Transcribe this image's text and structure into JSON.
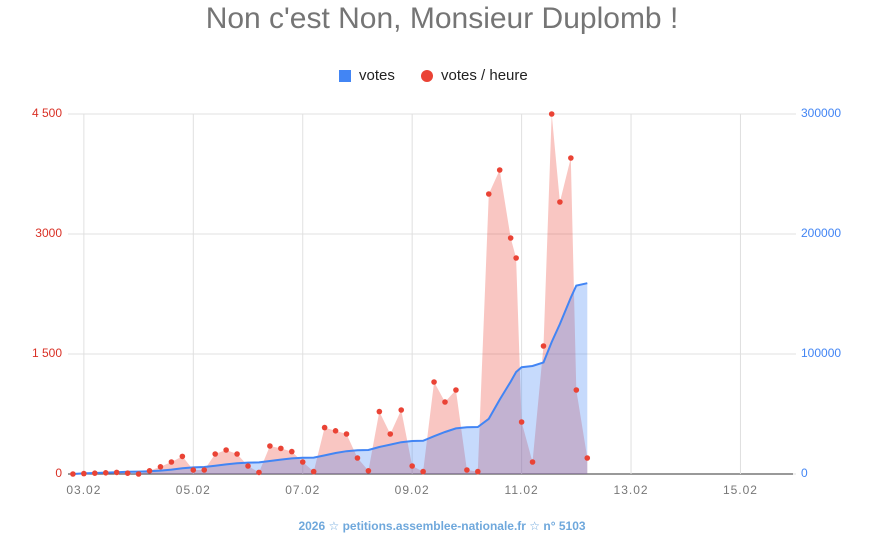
{
  "chart_data": {
    "type": "line",
    "title": "Non c'est Non, Monsieur Duplomb !",
    "footer": "2026   ☆   petitions.assemblee-nationale.fr   ☆   n° 5103",
    "legend": "top",
    "grid": true,
    "x": [
      2.8,
      3.0,
      3.2,
      3.4,
      3.6,
      3.8,
      4.0,
      4.2,
      4.4,
      4.6,
      4.8,
      5.0,
      5.2,
      5.4,
      5.6,
      5.8,
      6.0,
      6.2,
      6.4,
      6.6,
      6.8,
      7.0,
      7.2,
      7.4,
      7.6,
      7.8,
      8.0,
      8.2,
      8.4,
      8.6,
      8.8,
      9.0,
      9.2,
      9.4,
      9.6,
      9.8,
      10.0,
      10.2,
      10.4,
      10.6,
      10.8,
      10.9,
      11.0,
      11.2,
      11.4,
      11.55,
      11.7,
      11.9,
      12.0,
      12.2
    ],
    "xlim": [
      2.71,
      15.96
    ],
    "xticks": [
      {
        "value": 3,
        "label": "03.02"
      },
      {
        "value": 5,
        "label": "05.02"
      },
      {
        "value": 7,
        "label": "07.02"
      },
      {
        "value": 9,
        "label": "09.02"
      },
      {
        "value": 11,
        "label": "11.02"
      },
      {
        "value": 13,
        "label": "13.02"
      },
      {
        "value": 15,
        "label": "15.02"
      }
    ],
    "ylim": [
      0,
      4500
    ],
    "yticks": [
      0,
      {
        "value": 1500,
        "label": "1 500"
      },
      3000,
      {
        "value": 4500,
        "label": "4 500"
      }
    ],
    "y2lim": [
      0,
      300000
    ],
    "y2ticks": [
      0,
      100000,
      200000,
      300000
    ],
    "series": [
      {
        "name": "votes",
        "color": "#4285f4",
        "axis": "y2",
        "values": [
          0,
          500,
          800,
          1200,
          1500,
          1800,
          2000,
          2300,
          2800,
          3700,
          4800,
          5500,
          5800,
          6800,
          8000,
          9000,
          9500,
          9700,
          10800,
          12000,
          13000,
          13500,
          13700,
          15500,
          17500,
          19000,
          19800,
          20000,
          22500,
          24500,
          26500,
          27500,
          27700,
          31500,
          35000,
          38000,
          39000,
          39200,
          46000,
          62000,
          77000,
          85000,
          89000,
          90000,
          93000,
          110000,
          125000,
          147000,
          157000,
          159000
        ]
      },
      {
        "name": "votes / heure",
        "color": "#ea4335",
        "axis": "y",
        "values": [
          0,
          5,
          10,
          15,
          20,
          10,
          0,
          40,
          90,
          150,
          220,
          50,
          50,
          250,
          300,
          250,
          100,
          20,
          350,
          320,
          280,
          150,
          30,
          580,
          540,
          500,
          200,
          40,
          780,
          500,
          800,
          100,
          30,
          1150,
          900,
          1050,
          50,
          30,
          3500,
          3800,
          2950,
          2700,
          650,
          150,
          1600,
          4500,
          3400,
          3950,
          1050,
          200
        ]
      }
    ]
  }
}
